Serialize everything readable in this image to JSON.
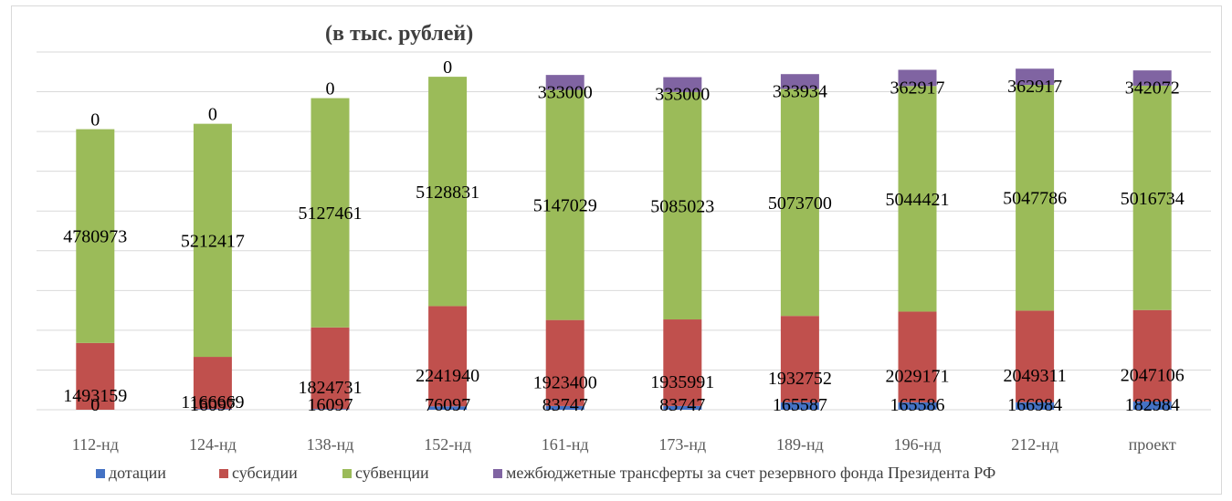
{
  "chart_data": {
    "type": "bar",
    "stacked": true,
    "title": "(в тыс. рублей)",
    "categories": [
      "112-нд",
      "124-нд",
      "138-нд",
      "152-нд",
      "161-нд",
      "173-нд",
      "189-нд",
      "196-нд",
      "212-нд",
      "проект"
    ],
    "series": [
      {
        "name": "дотации",
        "color": "#4472c4",
        "values": [
          0,
          16097,
          16097,
          76097,
          83747,
          83747,
          165587,
          165586,
          166984,
          182984
        ]
      },
      {
        "name": "субсидии",
        "color": "#c0504d",
        "values": [
          1493159,
          1166669,
          1824731,
          2241940,
          1923400,
          1935991,
          1932752,
          2029171,
          2049311,
          2047106
        ]
      },
      {
        "name": "субвенции",
        "color": "#9bbb59",
        "values": [
          4780973,
          5212417,
          5127461,
          5128831,
          5147029,
          5085023,
          5073700,
          5044421,
          5047786,
          5016734
        ]
      },
      {
        "name": "межбюджетные трансферты за счет резервного фонда Президента РФ",
        "color": "#8064a2",
        "values": [
          0,
          0,
          0,
          0,
          333000,
          333000,
          333934,
          362917,
          362917,
          342072
        ]
      }
    ],
    "ylim": [
      0,
      8000000
    ],
    "grid": true,
    "legend": "bottom"
  }
}
